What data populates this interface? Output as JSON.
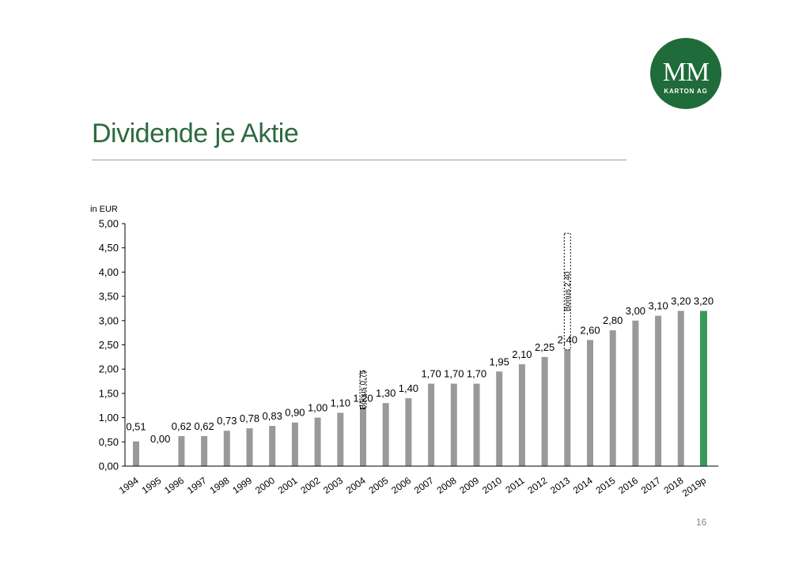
{
  "slide": {
    "title": "Dividende je Aktie",
    "page_number": "16",
    "logo": {
      "main": "MM",
      "sub": "KARTON AG",
      "color": "#1f6b3a"
    }
  },
  "colors": {
    "bar": "#999999",
    "highlight": "#3a9a5b",
    "title": "#2e6b3e"
  },
  "chart_data": {
    "type": "bar",
    "ylabel": "in EUR",
    "ylim": [
      0,
      5
    ],
    "yticks": [
      "0,00",
      "0,50",
      "1,00",
      "1,50",
      "2,00",
      "2,50",
      "3,00",
      "3,50",
      "4,00",
      "4,50",
      "5,00"
    ],
    "categories": [
      "1994",
      "1995",
      "1996",
      "1997",
      "1998",
      "1999",
      "2000",
      "2001",
      "2002",
      "2003",
      "2004",
      "2005",
      "2006",
      "2007",
      "2008",
      "2009",
      "2010",
      "2011",
      "2012",
      "2013",
      "2014",
      "2015",
      "2016",
      "2017",
      "2018",
      "2019p"
    ],
    "values": [
      0.51,
      0.0,
      0.62,
      0.62,
      0.73,
      0.78,
      0.83,
      0.9,
      1.0,
      1.1,
      1.2,
      1.3,
      1.4,
      1.7,
      1.7,
      1.7,
      1.95,
      2.1,
      2.25,
      2.4,
      2.6,
      2.8,
      3.0,
      3.1,
      3.2,
      3.2
    ],
    "labels": [
      "0,51",
      "0,00",
      "0,62",
      "0,62",
      "0,73",
      "0,78",
      "0,83",
      "0,90",
      "1,00",
      "1,10",
      "1,20",
      "1,30",
      "1,40",
      "1,70",
      "1,70",
      "1,70",
      "1,95",
      "2,10",
      "2,25",
      "2,40",
      "2,60",
      "2,80",
      "3,00",
      "3,10",
      "3,20",
      "3,20"
    ],
    "highlight_category": "2019p",
    "bonuses": [
      {
        "category": "2004",
        "label": "Bonus 0,75",
        "value": 0.75
      },
      {
        "category": "2013",
        "label": "Bonus 2,40",
        "value": 2.4
      }
    ]
  }
}
